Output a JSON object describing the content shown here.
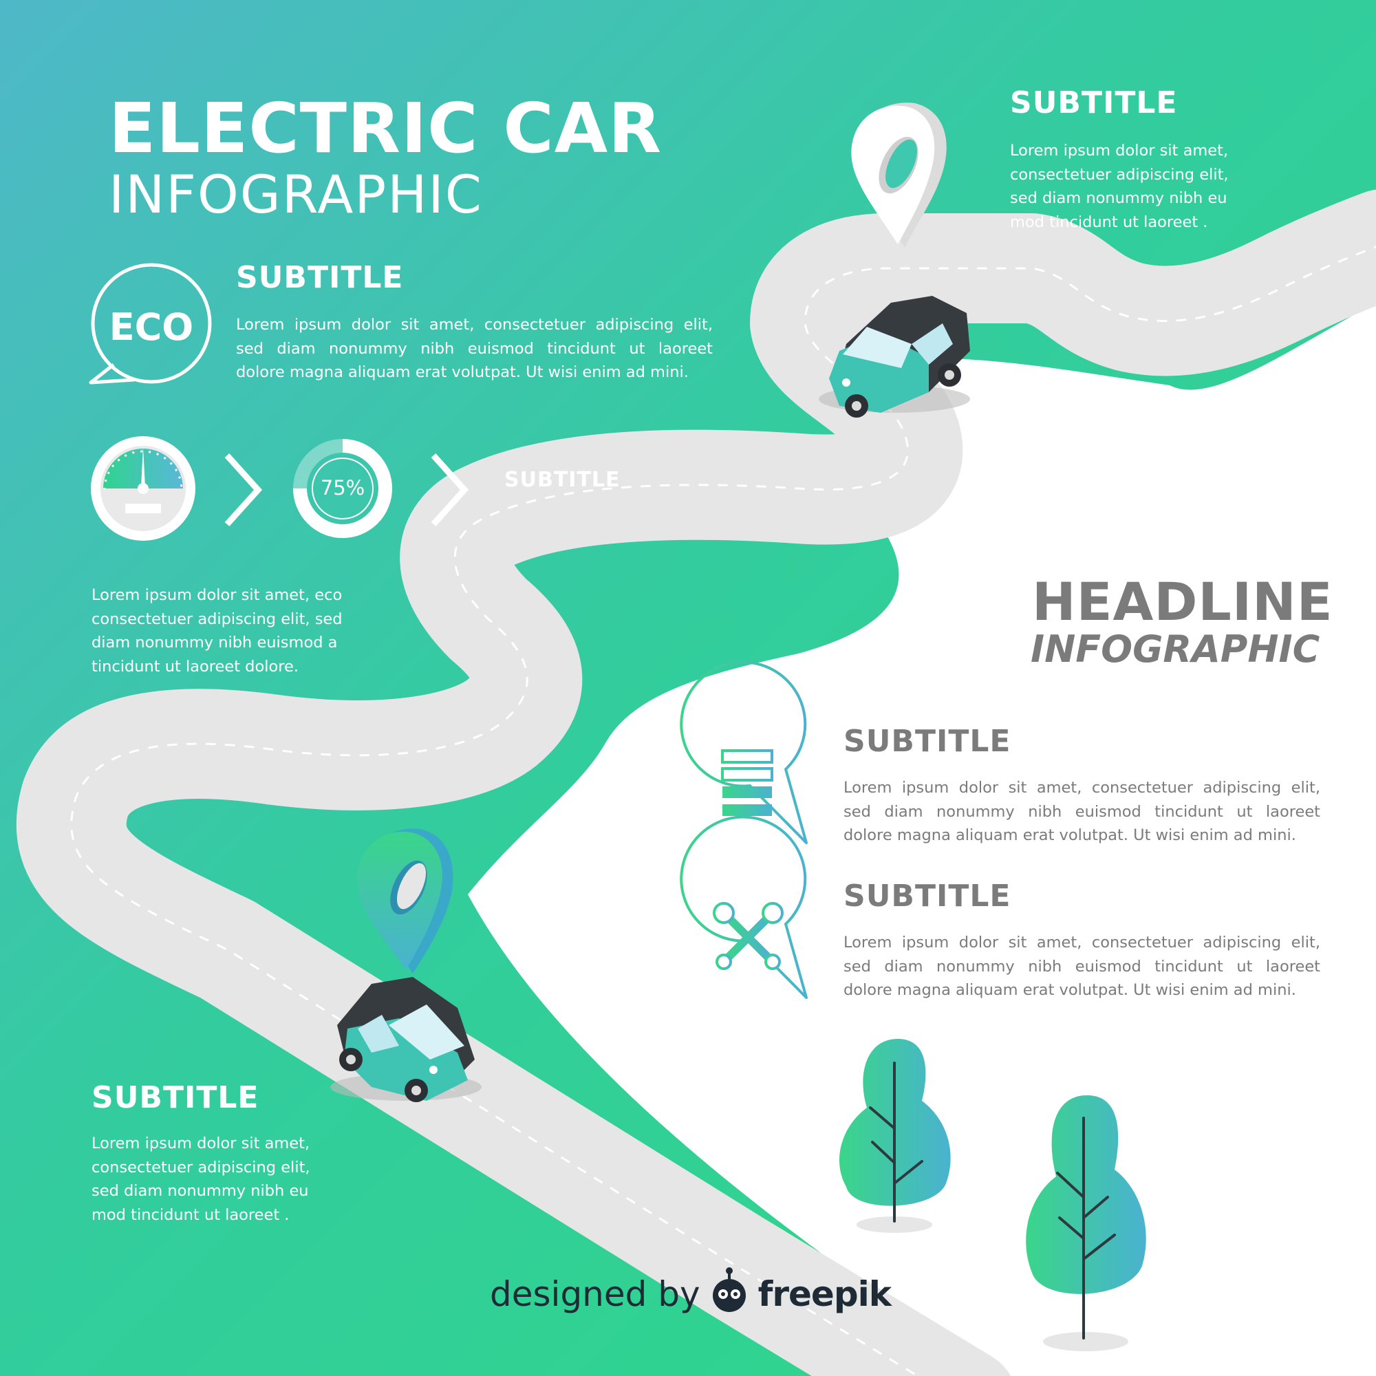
{
  "header": {
    "title": "ELECTRIC CAR",
    "subtitle": "INFOGRAPHIC"
  },
  "sections": {
    "top_right": {
      "title": "SUBTITLE",
      "lines": [
        "Lorem ipsum dolor sit amet,",
        "consectetuer adipiscing elit,",
        "sed diam nonummy nibh eu",
        "mod tincidunt ut laoreet ."
      ]
    },
    "eco": {
      "badge": "ECO",
      "title": "SUBTITLE",
      "lines": [
        "Lorem ipsum dolor sit amet, consectetuer adipiscing elit,",
        "sed diam nonummy nibh euismod tincidunt ut laoreet",
        "dolore magna aliquam erat volutpat. Ut wisi enim ad mini."
      ]
    },
    "gauge": {
      "percent_label": "75%",
      "percent_value": 75,
      "title": "SUBTITLE",
      "lines": [
        "Lorem ipsum dolor sit amet, eco",
        "consectetuer adipiscing elit, sed",
        "diam nonummy nibh euismod a",
        "tincidunt ut laoreet dolore."
      ]
    },
    "headline": {
      "title": "HEADLINE",
      "subtitle": "INFOGRAPHIC"
    },
    "battery": {
      "title": "SUBTITLE",
      "lines": [
        "Lorem ipsum dolor sit amet, consectetuer adipiscing elit,",
        "sed diam nonummy nibh euismod tincidunt ut laoreet",
        "dolore magna aliquam erat volutpat. Ut wisi enim ad mini."
      ]
    },
    "tools": {
      "title": "SUBTITLE",
      "lines": [
        "Lorem ipsum dolor sit amet, consectetuer adipiscing elit,",
        "sed diam nonummy nibh euismod tincidunt ut laoreet",
        "dolore magna aliquam erat volutpat. Ut wisi enim ad mini."
      ]
    },
    "bottom_left": {
      "title": "SUBTITLE",
      "lines": [
        "Lorem ipsum dolor sit amet,",
        "consectetuer adipiscing elit,",
        "sed diam nonummy nibh eu",
        "mod tincidunt ut laoreet ."
      ]
    }
  },
  "credit": {
    "prefix": "designed by",
    "brand": "freepik"
  },
  "icons": [
    "eco-speech-bubble-icon",
    "speedometer-icon",
    "chevron-right-icon",
    "progress-ring-icon",
    "map-pin-icon",
    "electric-car-icon",
    "battery-icon",
    "crossed-wrenches-icon",
    "tree-icon",
    "freepik-logo-icon"
  ],
  "colors": {
    "bg_top_left": "#4fb9c6",
    "bg_green": "#2fd38f",
    "road": "#e6e6e6",
    "text_gray": "#7b7b7b",
    "car_teal": "#3fc3b3"
  }
}
